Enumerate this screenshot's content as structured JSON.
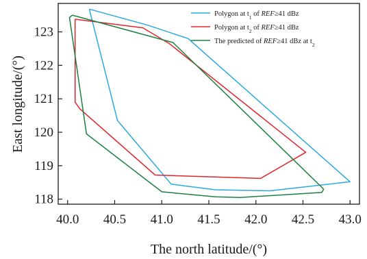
{
  "chart_data": {
    "type": "line",
    "xlabel": "The north latitude/(°)",
    "ylabel": "East longitude/(°)",
    "xlim": [
      39.9,
      43.1
    ],
    "ylim": [
      117.85,
      123.85
    ],
    "x_ticks": [
      "40.0",
      "40.5",
      "41.0",
      "41.5",
      "42.0",
      "42.5",
      "43.0"
    ],
    "y_ticks": [
      "118",
      "119",
      "120",
      "121",
      "122",
      "123"
    ],
    "grid": false,
    "legend_position": "top-right",
    "series": [
      {
        "name": "Polygon at t1 of REF≥41 dBz",
        "legend": {
          "pre": "Polygon at t",
          "sub": "1",
          "mid": " of ",
          "ital": "REF",
          "post": "≥41 dBz"
        },
        "color": "#29a9e0",
        "closed": true,
        "x": [
          40.23,
          40.85,
          41.28,
          43.0,
          42.15,
          41.57,
          41.1,
          40.53,
          40.23
        ],
        "y": [
          123.68,
          123.2,
          122.8,
          118.52,
          118.25,
          118.28,
          118.45,
          120.35,
          123.68
        ]
      },
      {
        "name": "Polygon at t2 of REF≥41 dBz",
        "legend": {
          "pre": "Polygon at t",
          "sub": "2",
          "mid": " of ",
          "ital": "REF",
          "post": "≥41 dBz"
        },
        "color": "#e0252a",
        "closed": true,
        "x": [
          40.08,
          40.8,
          41.08,
          42.53,
          42.05,
          40.93,
          40.13,
          40.08,
          40.08
        ],
        "y": [
          123.38,
          123.12,
          122.65,
          119.4,
          118.62,
          118.72,
          120.7,
          120.9,
          123.38
        ]
      },
      {
        "name": "The predicted of REF≥41 dBz at t2",
        "legend": {
          "pre": "The predicted of ",
          "ital": "REF",
          "post": "≥41 dBz  at t",
          "sub": "2"
        },
        "color": "#1a8040",
        "closed": true,
        "x": [
          40.05,
          41.12,
          42.72,
          42.7,
          41.83,
          41.57,
          41.0,
          40.2,
          40.02,
          40.05
        ],
        "y": [
          123.5,
          122.68,
          118.3,
          118.2,
          118.05,
          118.07,
          118.22,
          119.95,
          123.43,
          123.5
        ]
      }
    ]
  }
}
